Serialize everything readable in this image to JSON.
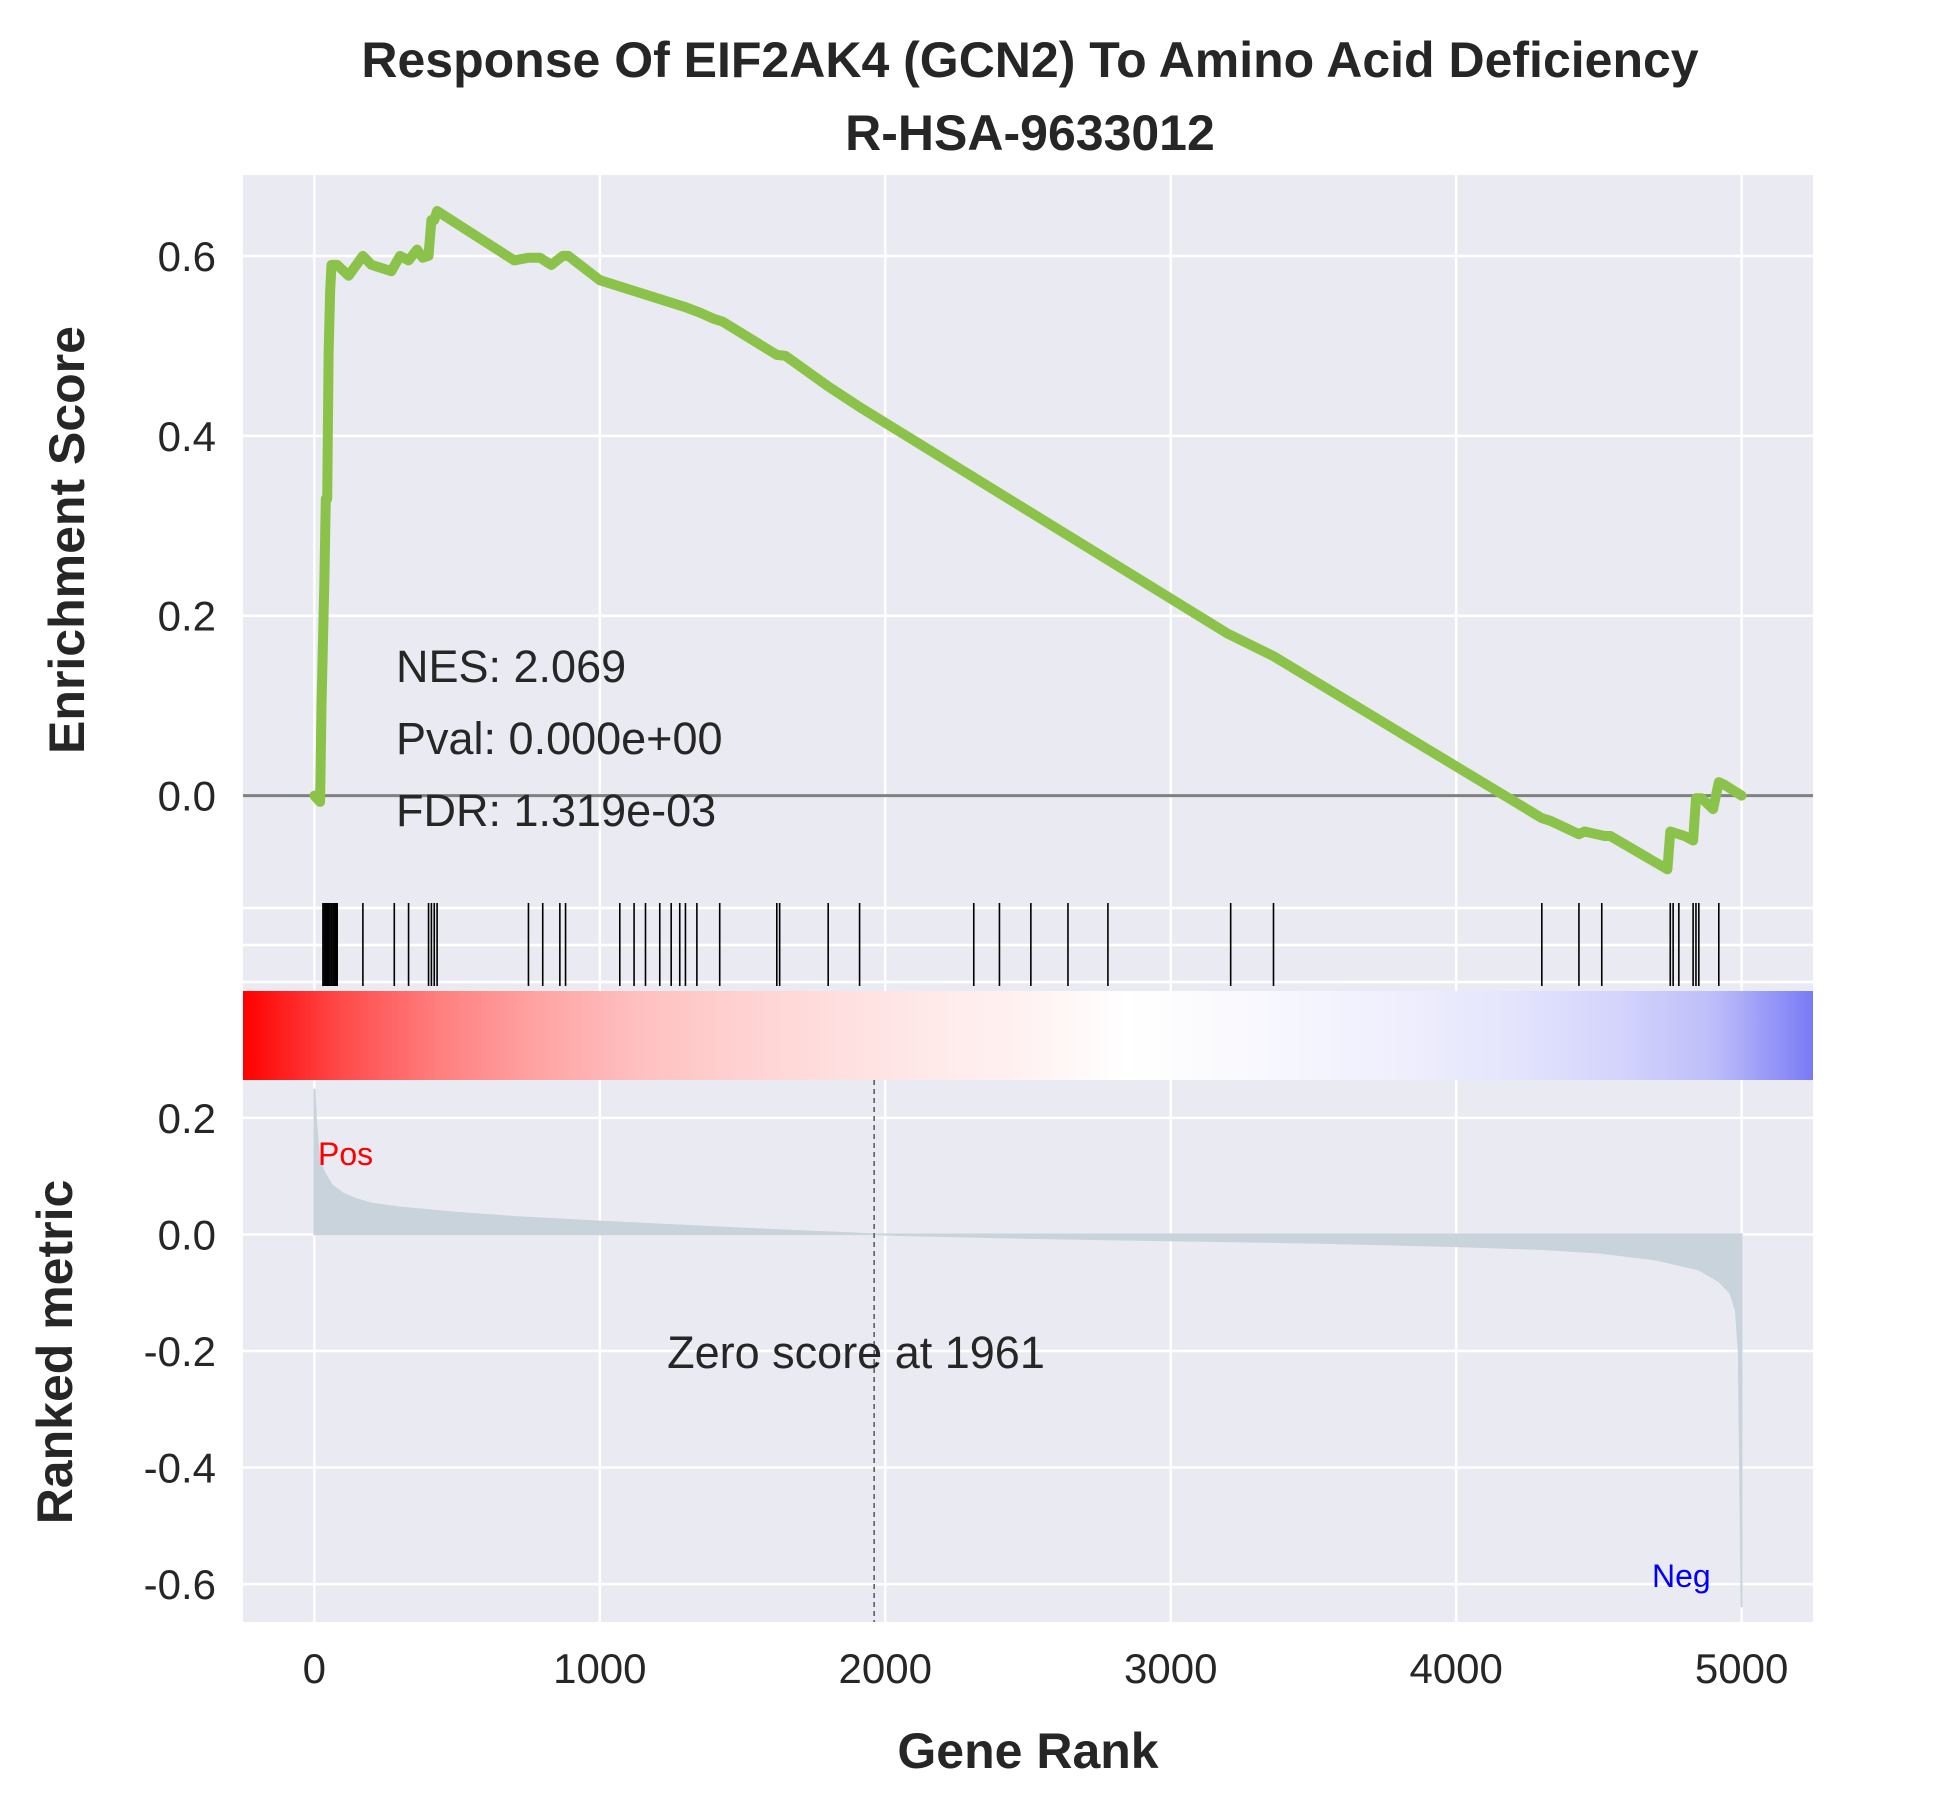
{
  "chart_data": {
    "type": "line",
    "title": "Response Of EIF2AK4 (GCN2) To Amino Acid Deficiency",
    "subtitle": "R-HSA-9633012",
    "xlabel": "Gene Rank",
    "xlim": [
      -250,
      5250
    ],
    "x_ticks": [
      "0",
      "1000",
      "2000",
      "3000",
      "4000",
      "5000"
    ],
    "x_tick_values": [
      0,
      1000,
      2000,
      3000,
      4000,
      5000
    ],
    "grid": true,
    "enrichment": {
      "ylabel": "Enrichment Score",
      "ylim": [
        -0.115,
        0.69
      ],
      "y_ticks": [
        "0.0",
        "0.2",
        "0.4",
        "0.6"
      ],
      "y_tick_values": [
        0.0,
        0.2,
        0.4,
        0.6
      ],
      "line_color": "#8bc34a",
      "baseline": 0.0,
      "x": [
        0,
        20,
        25,
        35,
        40,
        45,
        50,
        55,
        60,
        65,
        70,
        75,
        80,
        120,
        170,
        200,
        270,
        300,
        330,
        360,
        380,
        400,
        410,
        420,
        430,
        700,
        750,
        790,
        830,
        870,
        890,
        1000,
        1050,
        1100,
        1150,
        1200,
        1250,
        1300,
        1350,
        1400,
        1430,
        1620,
        1650,
        1800,
        1920,
        3200,
        3360,
        4300,
        4330,
        4430,
        4450,
        4520,
        4540,
        4740,
        4750,
        4800,
        4830,
        4840,
        4860,
        4900,
        4920,
        4940,
        5000
      ],
      "y": [
        0.0,
        -0.007,
        0.1,
        0.24,
        0.33,
        0.33,
        0.49,
        0.56,
        0.59,
        0.59,
        0.59,
        0.59,
        0.59,
        0.578,
        0.6,
        0.59,
        0.583,
        0.6,
        0.595,
        0.607,
        0.598,
        0.6,
        0.64,
        0.64,
        0.65,
        0.595,
        0.598,
        0.598,
        0.59,
        0.6,
        0.6,
        0.573,
        0.568,
        0.563,
        0.558,
        0.553,
        0.548,
        0.543,
        0.537,
        0.53,
        0.527,
        0.49,
        0.489,
        0.455,
        0.43,
        0.18,
        0.155,
        -0.025,
        -0.028,
        -0.043,
        -0.04,
        -0.045,
        -0.045,
        -0.082,
        -0.04,
        -0.045,
        -0.05,
        -0.003,
        -0.003,
        -0.015,
        0.015,
        0.012,
        0.0
      ],
      "annotations": [
        "NES: 2.069",
        "Pval: 0.000e+00",
        "FDR: 1.319e-03"
      ]
    },
    "hits": [
      30,
      35,
      40,
      45,
      50,
      55,
      60,
      65,
      70,
      75,
      80,
      170,
      280,
      330,
      400,
      410,
      420,
      430,
      750,
      800,
      860,
      880,
      1070,
      1120,
      1160,
      1210,
      1250,
      1280,
      1300,
      1340,
      1420,
      1620,
      1630,
      1800,
      1910,
      2310,
      2400,
      2510,
      2640,
      2780,
      3210,
      3360,
      4300,
      4430,
      4510,
      4750,
      4760,
      4780,
      4830,
      4840,
      4850,
      4920
    ],
    "rank_heatmap": {
      "colors": [
        "#ff0000",
        "#ff4a4a",
        "#ff7f7f",
        "#ffa3a3",
        "#ffbfbf",
        "#ffd0d0",
        "#ffdede",
        "#ffe9e9",
        "#fff2f2",
        "#ffffff",
        "#fafafe",
        "#f4f4fe",
        "#ededfd",
        "#e3e3fd",
        "#d4d4fc",
        "#bdbdfa",
        "#7a7af5"
      ]
    },
    "ranked_metric": {
      "ylabel": "Ranked metric",
      "ylim": [
        -0.665,
        0.265
      ],
      "y_ticks": [
        "0.2",
        "0.0",
        "-0.2",
        "-0.4",
        "-0.6"
      ],
      "y_tick_values": [
        0.2,
        0.0,
        -0.2,
        -0.4,
        -0.6
      ],
      "fill_color": "#c8d3dc",
      "x": [
        0,
        5,
        15,
        30,
        60,
        100,
        150,
        200,
        300,
        500,
        700,
        1000,
        1500,
        1961,
        2500,
        3000,
        3500,
        4000,
        4300,
        4500,
        4700,
        4850,
        4920,
        4960,
        4980,
        4990,
        4997,
        5000
      ],
      "values": [
        0.25,
        0.2,
        0.14,
        0.11,
        0.085,
        0.07,
        0.06,
        0.053,
        0.046,
        0.037,
        0.03,
        0.022,
        0.01,
        0.0,
        -0.006,
        -0.01,
        -0.014,
        -0.02,
        -0.025,
        -0.031,
        -0.043,
        -0.06,
        -0.08,
        -0.1,
        -0.13,
        -0.2,
        -0.5,
        -0.64
      ],
      "zero_cross": 1961,
      "zero_label": "Zero score at 1961",
      "pos_label": "Pos",
      "pos_color": "#ff0000",
      "neg_label": "Neg",
      "neg_color": "#0000ff"
    }
  }
}
